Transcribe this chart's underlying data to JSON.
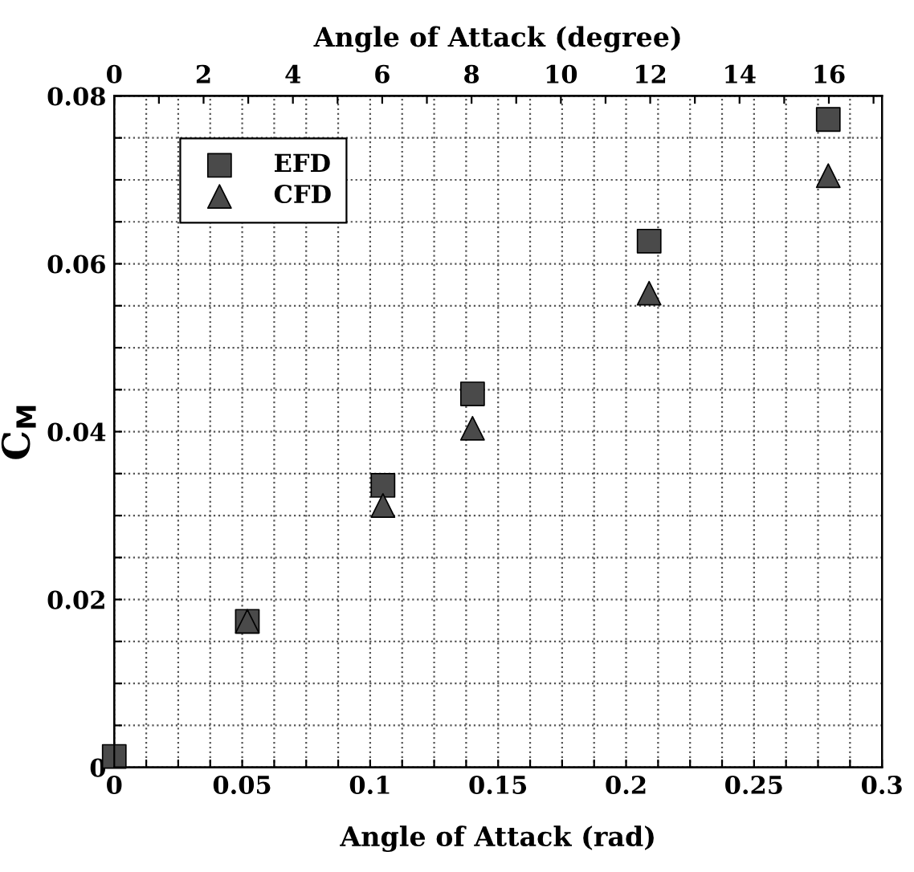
{
  "chart_data": {
    "type": "scatter",
    "xlabel": "Angle of Attack (rad)",
    "ylabel": "C$_{M}$",
    "x2label": "Angle of Attack (degree)",
    "xlim": [
      0,
      0.3
    ],
    "ylim": [
      0,
      0.08
    ],
    "x2lim": [
      0,
      17.19
    ],
    "xticks": [
      0,
      {
        "value": 0.0125,
        "label": null
      },
      {
        "value": 0.025,
        "label": null
      },
      {
        "value": 0.0375,
        "label": null
      },
      0.05,
      {
        "value": 0.0625,
        "label": null
      },
      {
        "value": 0.075,
        "label": null
      },
      {
        "value": 0.0875,
        "label": null
      },
      0.1,
      {
        "value": 0.1125,
        "label": null
      },
      {
        "value": 0.125,
        "label": null
      },
      {
        "value": 0.1375,
        "label": null
      },
      0.15,
      {
        "value": 0.1625,
        "label": null
      },
      {
        "value": 0.175,
        "label": null
      },
      {
        "value": 0.1875,
        "label": null
      },
      0.2,
      {
        "value": 0.2125,
        "label": null
      },
      {
        "value": 0.225,
        "label": null
      },
      {
        "value": 0.2375,
        "label": null
      },
      0.25,
      {
        "value": 0.2625,
        "label": null
      },
      {
        "value": 0.275,
        "label": null
      },
      {
        "value": 0.2875,
        "label": null
      },
      0.3
    ],
    "yticks": [
      0,
      {
        "value": 0.005,
        "label": null
      },
      {
        "value": 0.01,
        "label": null
      },
      {
        "value": 0.015,
        "label": null
      },
      0.02,
      {
        "value": 0.025,
        "label": null
      },
      {
        "value": 0.03,
        "label": null
      },
      {
        "value": 0.035,
        "label": null
      },
      0.04,
      {
        "value": 0.045,
        "label": null
      },
      {
        "value": 0.05,
        "label": null
      },
      {
        "value": 0.055,
        "label": null
      },
      0.06,
      {
        "value": 0.065,
        "label": null
      },
      {
        "value": 0.07,
        "label": null
      },
      {
        "value": 0.075,
        "label": null
      },
      0.08
    ],
    "x2ticks": [
      0,
      {
        "value": 1,
        "label": null
      },
      2,
      {
        "value": 3,
        "label": null
      },
      4,
      {
        "value": 5,
        "label": null
      },
      6,
      {
        "value": 7,
        "label": null
      },
      8,
      {
        "value": 9,
        "label": null
      },
      10,
      {
        "value": 11,
        "label": null
      },
      12,
      {
        "value": 13,
        "label": null
      },
      14,
      {
        "value": 15,
        "label": null
      },
      16,
      {
        "value": 17,
        "label": null
      }
    ],
    "grid": true,
    "legend": "top left",
    "series": [
      {
        "name": "EFD",
        "color": "#4a4a4a",
        "marker": "square",
        "x": [
          0,
          0.052,
          0.105,
          0.14,
          0.209,
          0.279
        ],
        "values": [
          0.0013,
          0.0174,
          0.0336,
          0.0445,
          0.0627,
          0.0772
        ]
      },
      {
        "name": "CFD",
        "color": "#4a4a4a",
        "marker": "triangle",
        "x": [
          0.052,
          0.105,
          0.14,
          0.209,
          0.279
        ],
        "values": [
          0.0174,
          0.0312,
          0.0404,
          0.0565,
          0.0705
        ]
      }
    ]
  }
}
